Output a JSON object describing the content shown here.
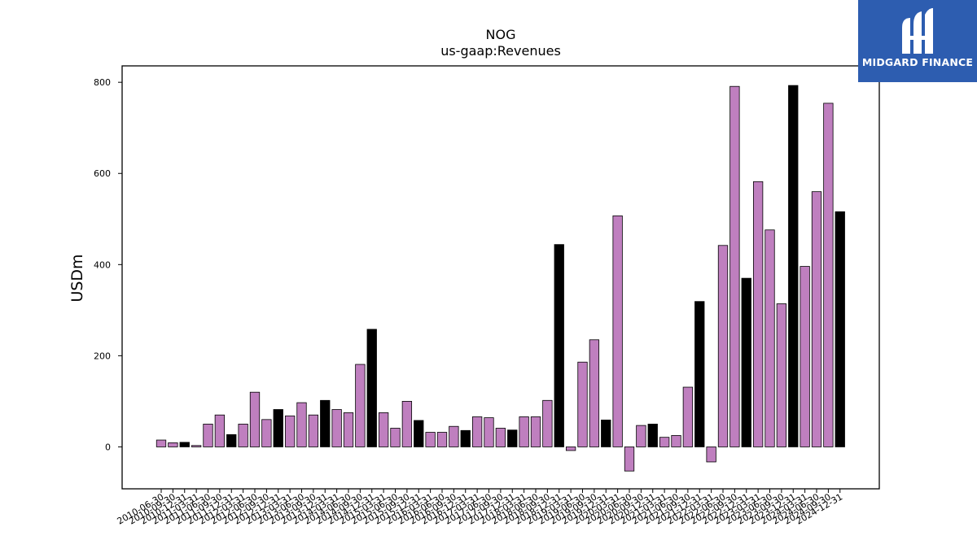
{
  "chart_data": {
    "type": "bar",
    "title": "NOG",
    "subtitle": "us-gaap:Revenues",
    "xlabel": "",
    "ylabel": "USDm",
    "ylim": [
      -92,
      836
    ],
    "yticks": [
      0,
      200,
      400,
      600,
      800
    ],
    "grid": false,
    "colors": {
      "quarter": "#bf7fbf",
      "annual": "#000000",
      "edge": "#000000"
    },
    "categories": [
      "2010-06-30",
      "2010-09-30",
      "2010-12-31",
      "2011-03-31",
      "2011-06-30",
      "2011-09-30",
      "2011-12-31",
      "2012-03-31",
      "2012-06-30",
      "2012-09-30",
      "2012-12-31",
      "2013-03-31",
      "2013-06-30",
      "2013-09-30",
      "2013-12-31",
      "2014-03-31",
      "2014-06-30",
      "2014-09-30",
      "2014-12-31",
      "2015-03-31",
      "2015-06-30",
      "2015-09-30",
      "2015-12-31",
      "2016-03-31",
      "2016-06-30",
      "2016-09-30",
      "2016-12-31",
      "2017-03-31",
      "2017-06-30",
      "2017-09-30",
      "2017-12-31",
      "2018-03-31",
      "2018-06-30",
      "2018-09-30",
      "2018-12-31",
      "2019-03-31",
      "2019-06-30",
      "2019-09-30",
      "2019-12-31",
      "2020-03-31",
      "2020-06-30",
      "2020-09-30",
      "2020-12-31",
      "2021-03-31",
      "2021-06-30",
      "2021-09-30",
      "2021-12-31",
      "2022-03-31",
      "2022-06-30",
      "2022-09-30",
      "2022-12-31",
      "2023-03-31",
      "2023-06-30",
      "2023-09-30",
      "2023-12-31",
      "2024-03-31",
      "2024-06-30",
      "2024-09-30",
      "2024-12-31"
    ],
    "values": [
      15,
      9,
      10,
      3,
      50,
      70,
      27,
      50,
      120,
      60,
      82,
      68,
      97,
      70,
      102,
      82,
      75,
      181,
      258,
      75,
      41,
      100,
      58,
      32,
      32,
      45,
      36,
      66,
      64,
      41,
      37,
      66,
      66,
      102,
      444,
      -8,
      186,
      235,
      59,
      507,
      -53,
      47,
      50,
      21,
      25,
      131,
      319,
      -33,
      442,
      791,
      370,
      582,
      476,
      314,
      793,
      396,
      560,
      754,
      516
    ],
    "is_annual": [
      false,
      false,
      true,
      false,
      false,
      false,
      true,
      false,
      false,
      false,
      true,
      false,
      false,
      false,
      true,
      false,
      false,
      false,
      true,
      false,
      false,
      false,
      true,
      false,
      false,
      false,
      true,
      false,
      false,
      false,
      true,
      false,
      false,
      false,
      true,
      false,
      false,
      false,
      true,
      false,
      false,
      false,
      true,
      false,
      false,
      false,
      true,
      false,
      false,
      false,
      true,
      false,
      false,
      false,
      true,
      false,
      false,
      false,
      true
    ]
  },
  "logo": {
    "text": "MIDGARD FINANCE"
  }
}
